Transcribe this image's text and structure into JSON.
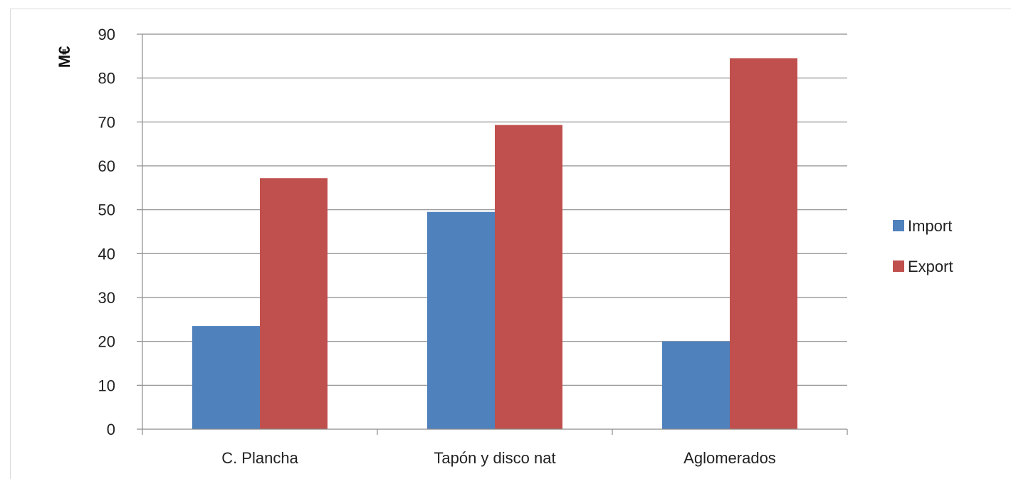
{
  "chart_data": {
    "type": "bar",
    "title": "",
    "xlabel": "",
    "ylabel": "M€",
    "ylim": [
      0,
      90
    ],
    "yticks": [
      0,
      10,
      20,
      30,
      40,
      50,
      60,
      70,
      80,
      90
    ],
    "grid": true,
    "legend_position": "right",
    "categories": [
      "C. Plancha",
      "Tapón y disco nat",
      "Aglomerados"
    ],
    "series": [
      {
        "name": "Import",
        "color": "#4f81bd",
        "values": [
          23.5,
          49.5,
          20
        ]
      },
      {
        "name": "Export",
        "color": "#c0504d",
        "values": [
          57.2,
          69.3,
          84.5
        ]
      }
    ]
  }
}
